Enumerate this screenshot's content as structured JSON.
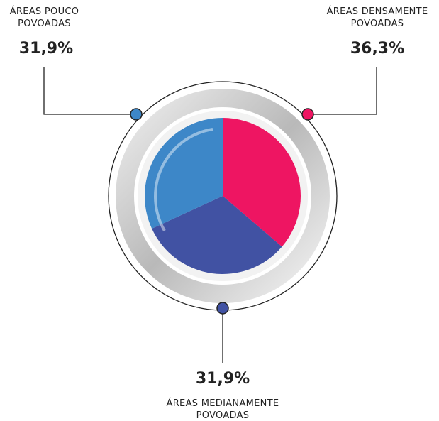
{
  "chart_data": {
    "type": "pie",
    "categories": [
      "ÁREAS DENSAMENTE POVOADAS",
      "ÁREAS MEDIANAMENTE POVOADAS",
      "ÁREAS POUCO POVOADAS"
    ],
    "values": [
      36.3,
      31.9,
      31.9
    ],
    "value_labels": [
      "36,3%",
      "31,9%",
      "31,9%"
    ],
    "colors": [
      "#ee1562",
      "#4152a3",
      "#3d87c8"
    ]
  }
}
